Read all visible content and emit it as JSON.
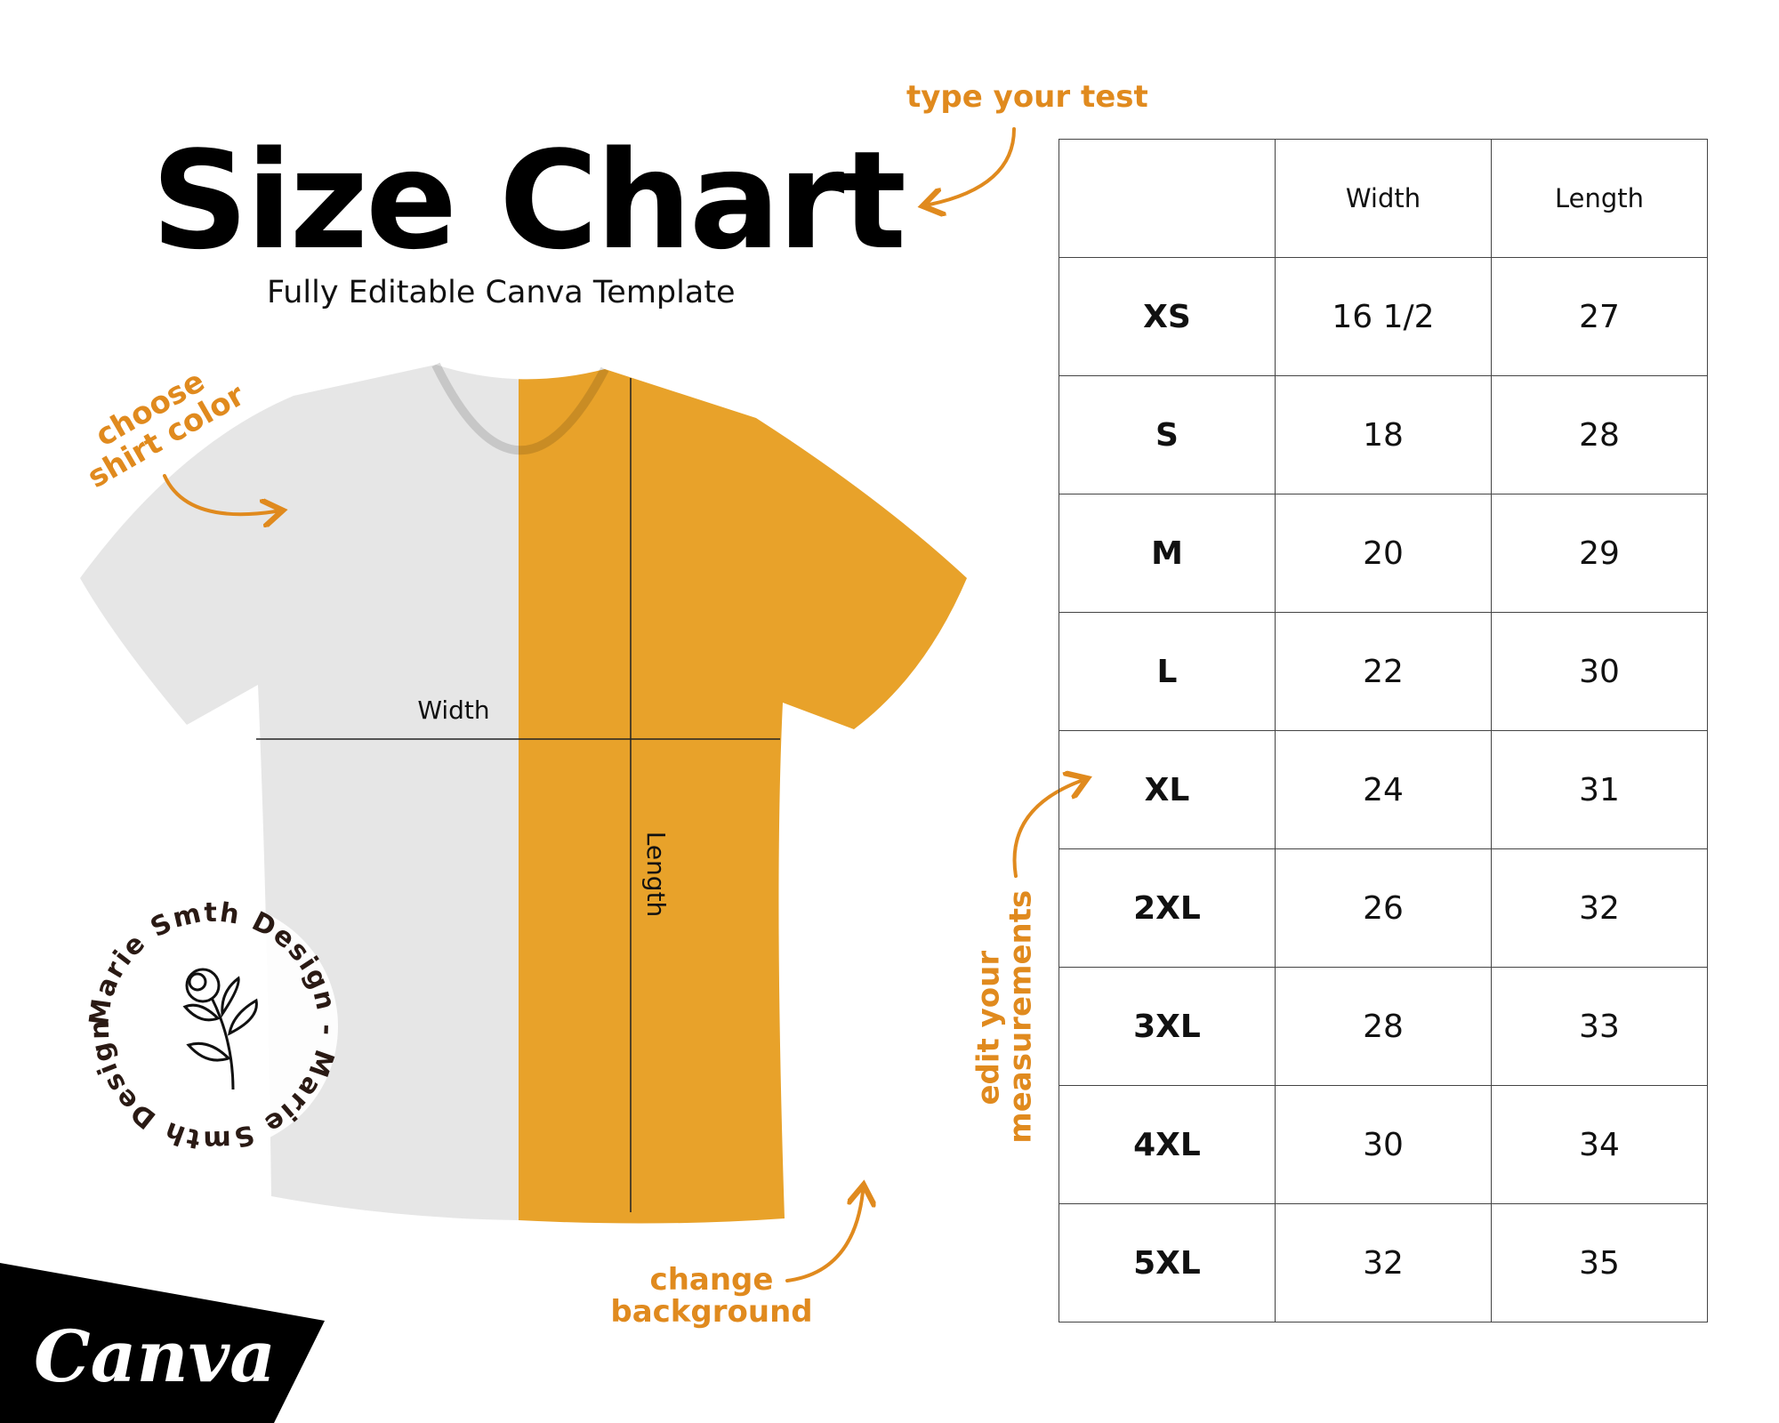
{
  "header": {
    "title": "Size Chart",
    "subtitle": "Fully Editable Canva Template"
  },
  "annotations": {
    "type_text": "type your test",
    "shirt_color": [
      "choose",
      "shirt color"
    ],
    "measurements": [
      "edit your",
      "measurements"
    ],
    "background": [
      "change",
      "background"
    ]
  },
  "shirt": {
    "width_label": "Width",
    "length_label": "Length",
    "colors": {
      "left": "#e6e6e6",
      "right": "#e8a22a"
    }
  },
  "seal": {
    "text": "Marie Smth Design - Marie Smth Design - "
  },
  "logo": {
    "text": "Canva"
  },
  "accent_color": "#e08a1e",
  "table": {
    "headers": [
      "",
      "Width",
      "Length"
    ],
    "rows": [
      [
        "XS",
        "16 1/2",
        "27"
      ],
      [
        "S",
        "18",
        "28"
      ],
      [
        "M",
        "20",
        "29"
      ],
      [
        "L",
        "22",
        "30"
      ],
      [
        "XL",
        "24",
        "31"
      ],
      [
        "2XL",
        "26",
        "32"
      ],
      [
        "3XL",
        "28",
        "33"
      ],
      [
        "4XL",
        "30",
        "34"
      ],
      [
        "5XL",
        "32",
        "35"
      ]
    ]
  }
}
